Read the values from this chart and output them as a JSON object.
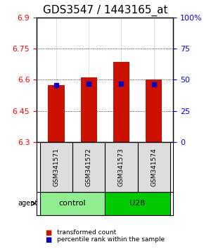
{
  "title": "GDS3547 / 1443165_at",
  "samples": [
    "GSM341571",
    "GSM341572",
    "GSM341573",
    "GSM341574"
  ],
  "red_bar_tops": [
    6.573,
    6.61,
    6.685,
    6.6
  ],
  "blue_marker_values": [
    6.574,
    6.58,
    6.58,
    6.578
  ],
  "bar_base": 6.3,
  "ylim_left": [
    6.3,
    6.9
  ],
  "ylim_right": [
    0,
    100
  ],
  "yticks_left": [
    6.3,
    6.45,
    6.6,
    6.75,
    6.9
  ],
  "yticks_right": [
    0,
    25,
    50,
    75,
    100
  ],
  "ytick_labels_left": [
    "6.3",
    "6.45",
    "6.6",
    "6.75",
    "6.9"
  ],
  "ytick_labels_right": [
    "0",
    "25",
    "50",
    "75",
    "100%"
  ],
  "groups": [
    {
      "label": "control",
      "indices": [
        0,
        1
      ],
      "color": "#90EE90"
    },
    {
      "label": "U28",
      "indices": [
        2,
        3
      ],
      "color": "#00CC00"
    }
  ],
  "bar_color": "#CC1100",
  "marker_color": "#0000CC",
  "agent_label": "agent",
  "legend_items": [
    {
      "color": "#CC1100",
      "label": "transformed count"
    },
    {
      "color": "#0000CC",
      "label": "percentile rank within the sample"
    }
  ],
  "bar_width": 0.5,
  "title_fontsize": 11,
  "tick_fontsize": 8,
  "label_fontsize": 8
}
